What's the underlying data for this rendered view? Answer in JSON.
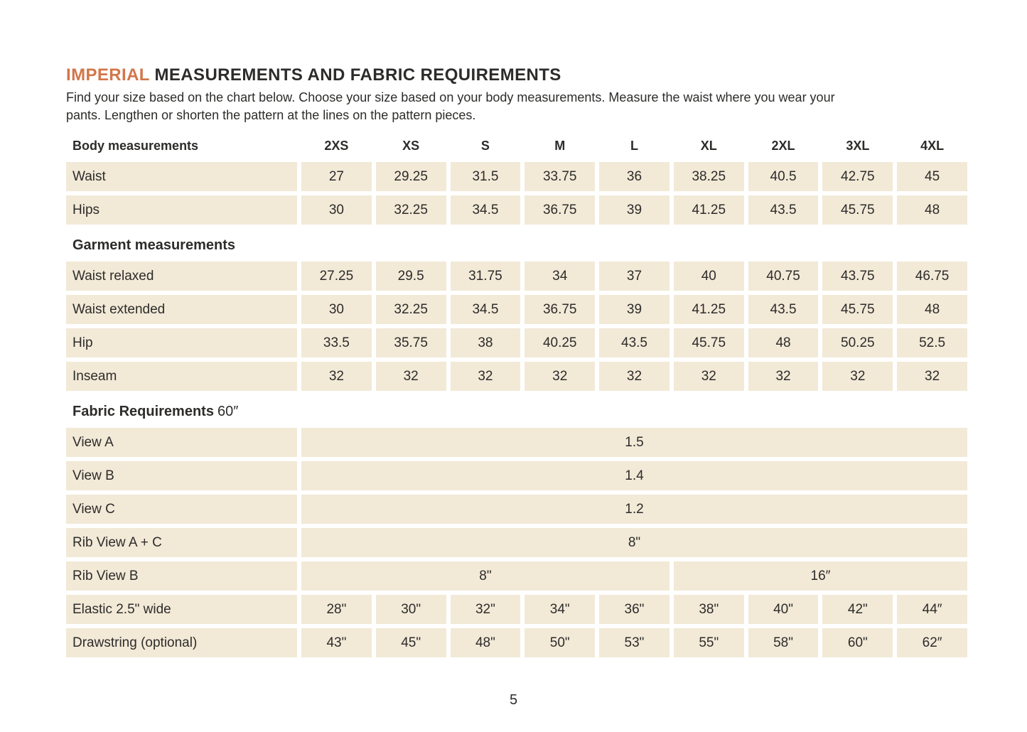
{
  "colors": {
    "accent_orange": "#d3764a",
    "cell_beige": "#f2e9d7",
    "text": "#2d2c2a",
    "page_background": "#ffffff"
  },
  "title": {
    "highlight": "IMPERIAL",
    "rest": " MEASUREMENTS AND FABRIC REQUIREMENTS"
  },
  "intro": {
    "line1": "Find your size based on the chart below. Choose your size based on your body measurements. Measure the waist where you wear your",
    "line2": "pants. Lengthen or shorten the pattern at the lines on the pattern pieces."
  },
  "table": {
    "rows": [
      {
        "kind": "size-header",
        "label": "Body measurements",
        "sizes": [
          "2XS",
          "XS",
          "S",
          "M",
          "L",
          "XL",
          "2XL",
          "3XL",
          "4XL"
        ]
      },
      {
        "kind": "data",
        "label": "Waist",
        "values": [
          "27",
          "29.25",
          "31.5",
          "33.75",
          "36",
          "38.25",
          "40.5",
          "42.75",
          "45"
        ]
      },
      {
        "kind": "data",
        "label": "Hips",
        "values": [
          "30",
          "32.25",
          "34.5",
          "36.75",
          "39",
          "41.25",
          "43.5",
          "45.75",
          "48"
        ]
      },
      {
        "kind": "section",
        "label": "Garment measurements",
        "suffix": ""
      },
      {
        "kind": "data",
        "label": "Waist relaxed",
        "values": [
          "27.25",
          "29.5",
          "31.75",
          "34",
          "37",
          "40",
          "40.75",
          "43.75",
          "46.75"
        ]
      },
      {
        "kind": "data",
        "label": "Waist extended",
        "values": [
          "30",
          "32.25",
          "34.5",
          "36.75",
          "39",
          "41.25",
          "43.5",
          "45.75",
          "48"
        ]
      },
      {
        "kind": "data",
        "label": "Hip",
        "values": [
          "33.5",
          "35.75",
          "38",
          "40.25",
          "43.5",
          "45.75",
          "48",
          "50.25",
          "52.5"
        ]
      },
      {
        "kind": "data",
        "label": "Inseam",
        "values": [
          "32",
          "32",
          "32",
          "32",
          "32",
          "32",
          "32",
          "32",
          "32"
        ]
      },
      {
        "kind": "section",
        "label": "Fabric Requirements",
        "suffix": "60″"
      },
      {
        "kind": "span",
        "label": "View A",
        "cells": [
          {
            "value": "1.5",
            "span": 9
          }
        ]
      },
      {
        "kind": "span",
        "label": "View B",
        "cells": [
          {
            "value": "1.4",
            "span": 9
          }
        ]
      },
      {
        "kind": "span",
        "label": "View C",
        "cells": [
          {
            "value": "1.2",
            "span": 9
          }
        ]
      },
      {
        "kind": "span",
        "label": "Rib View A + C",
        "cells": [
          {
            "value": "8\"",
            "span": 9
          }
        ]
      },
      {
        "kind": "span",
        "label": "Rib View B",
        "cells": [
          {
            "value": "8\"",
            "span": 5
          },
          {
            "value": "16″",
            "span": 4
          }
        ]
      },
      {
        "kind": "data",
        "label": "Elastic 2.5\" wide",
        "values": [
          "28\"",
          "30\"",
          "32\"",
          "34\"",
          "36\"",
          "38\"",
          "40\"",
          "42\"",
          "44″"
        ]
      },
      {
        "kind": "data",
        "label": "Drawstring (optional)",
        "values": [
          "43\"",
          "45\"",
          "48\"",
          "50\"",
          "53\"",
          "55\"",
          "58\"",
          "60\"",
          "62″"
        ]
      }
    ]
  },
  "footer": {
    "page_number": "5"
  }
}
